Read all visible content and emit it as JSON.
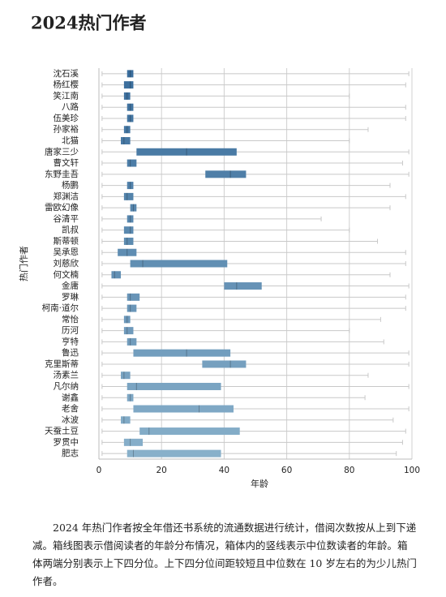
{
  "chart_data": {
    "type": "box",
    "title": "2024热门作者",
    "x_label": "年龄",
    "y_label": "热门作者",
    "categories": [
      "沈石溪",
      "杨红樱",
      "笑江南",
      "八路",
      "伍美珍",
      "孙家裕",
      "北猫",
      "唐家三少",
      "曹文轩",
      "东野圭吾",
      "杨鹏",
      "郑渊洁",
      "雷欧幻像",
      "谷清平",
      "凯叔",
      "斯蒂顿",
      "吴承恩",
      "刘慈欣",
      "何文楠",
      "金庸",
      "罗琳",
      "柯南·道尔",
      "常怡",
      "历河",
      "亨特",
      "鲁迅",
      "克里斯蒂",
      "汤素兰",
      "凡尔纳",
      "谢鑫",
      "老舍",
      "冰波",
      "天蚕土豆",
      "罗贯中",
      "肥志"
    ],
    "min": [
      1,
      1,
      1,
      1,
      1,
      1,
      1,
      1,
      1,
      1,
      1,
      1,
      1,
      1,
      1,
      1,
      1,
      1,
      1,
      1,
      1,
      1,
      1,
      1,
      1,
      1,
      1,
      1,
      1,
      1,
      1,
      1,
      1,
      1,
      1
    ],
    "q1": [
      9,
      8,
      8,
      9,
      9,
      8,
      7,
      12,
      9,
      34,
      9,
      8,
      10,
      9,
      8,
      8,
      6,
      10,
      4,
      40,
      9,
      9,
      8,
      8,
      9,
      11,
      33,
      7,
      9,
      9,
      11,
      7,
      13,
      8,
      9
    ],
    "median": [
      10,
      10,
      9,
      10,
      10,
      9,
      8,
      28,
      10,
      42,
      10,
      9,
      11,
      10,
      10,
      9,
      9,
      14,
      5,
      44,
      10,
      10,
      9,
      9,
      10,
      28,
      42,
      8,
      12,
      10,
      32,
      8,
      16,
      10,
      11
    ],
    "q3": [
      11,
      11,
      10,
      11,
      11,
      10,
      10,
      44,
      12,
      47,
      11,
      11,
      12,
      11,
      11,
      11,
      12,
      41,
      7,
      52,
      13,
      12,
      10,
      11,
      12,
      42,
      47,
      10,
      39,
      11,
      43,
      10,
      45,
      14,
      39
    ],
    "max": [
      99,
      98,
      80,
      98,
      98,
      86,
      80,
      99,
      97,
      99,
      93,
      98,
      93,
      71,
      80,
      89,
      98,
      98,
      93,
      99,
      98,
      98,
      90,
      80,
      91,
      99,
      99,
      86,
      99,
      85,
      99,
      94,
      98,
      97,
      95
    ],
    "color_range": [
      "#3a6d9c",
      "#88b0ca"
    ],
    "xlim": [
      0,
      100
    ],
    "xticks": [
      0,
      20,
      40,
      60,
      80,
      100
    ],
    "grid": true
  },
  "caption": "2024 年热门作者按全年借还书系统的流通数据进行统计，借阅次数按从上到下递减。箱线图表示借阅读者的年龄分布情况，箱体内的竖线表示中位数读者的年龄。箱体两端分别表示上下四分位。上下四分位间距较短且中位数在 10 岁左右的为少儿热门作者。"
}
